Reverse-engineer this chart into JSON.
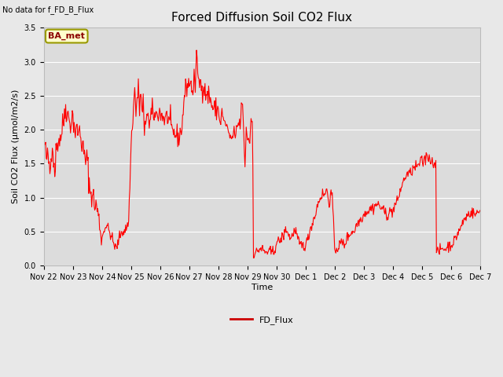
{
  "title": "Forced Diffusion Soil CO2 Flux",
  "ylabel": "Soil CO2 Flux (μmol/m2/s)",
  "xlabel": "Time",
  "no_data_label": "No data for f_FD_B_Flux",
  "legend_label": "FD_Flux",
  "ba_met_label": "BA_met",
  "line_color": "#ff0000",
  "legend_line_color": "#cc0000",
  "bg_color": "#e8e8e8",
  "plot_bg_color": "#dcdcdc",
  "ylim": [
    0,
    3.5
  ],
  "yticks": [
    0.0,
    0.5,
    1.0,
    1.5,
    2.0,
    2.5,
    3.0,
    3.5
  ],
  "ba_met_facecolor": "#ffffcc",
  "ba_met_edgecolor": "#999900",
  "title_fontsize": 11,
  "axis_label_fontsize": 8,
  "tick_fontsize": 7,
  "no_data_fontsize": 7,
  "ba_met_fontsize": 8,
  "legend_fontsize": 8
}
